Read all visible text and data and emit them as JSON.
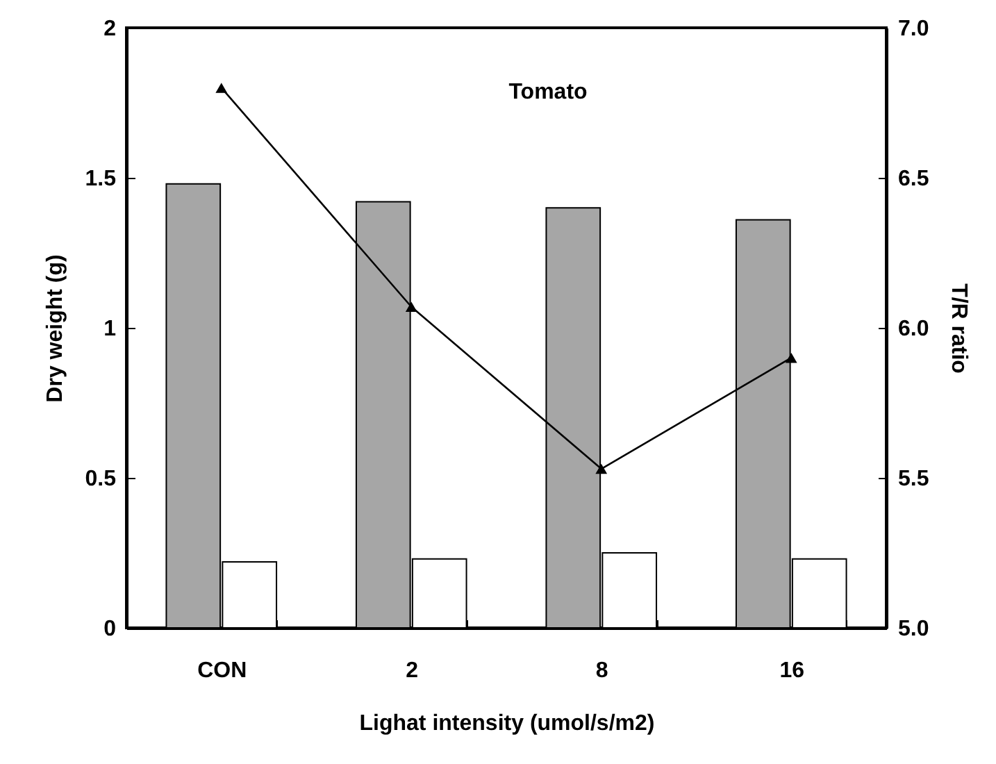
{
  "chart_data": {
    "type": "bar",
    "title": "Tomato",
    "xlabel": "Lighat intensity (umol/s/m2)",
    "ylabel": "Dry weight (g)",
    "y2label": "T/R ratio",
    "categories": [
      "CON",
      "2",
      "8",
      "16"
    ],
    "series": [
      {
        "color": "#a6a6a6",
        "values": [
          1.48,
          1.42,
          1.4,
          1.36
        ]
      },
      {
        "color": "#ffffff",
        "values": [
          0.22,
          0.23,
          0.25,
          0.23
        ]
      },
      {
        "type": "line",
        "axis": "y2",
        "color": "#000000",
        "values": [
          6.8,
          6.07,
          5.53,
          5.9
        ]
      }
    ],
    "ylim": [
      0,
      2
    ],
    "yticks": [
      0,
      0.5,
      1,
      1.5,
      2
    ],
    "y2lim": [
      5.0,
      7.0
    ],
    "y2ticks": [
      {
        "value": 5.0,
        "label": "5.0"
      },
      {
        "value": 5.5,
        "label": "5.5"
      },
      {
        "value": 6.0,
        "label": "6.0"
      },
      {
        "value": 6.5,
        "label": "6.5"
      },
      {
        "value": 7.0,
        "label": "7.0"
      }
    ],
    "marker": "triangle",
    "line_style": "solid",
    "grid": false,
    "legend": false
  }
}
